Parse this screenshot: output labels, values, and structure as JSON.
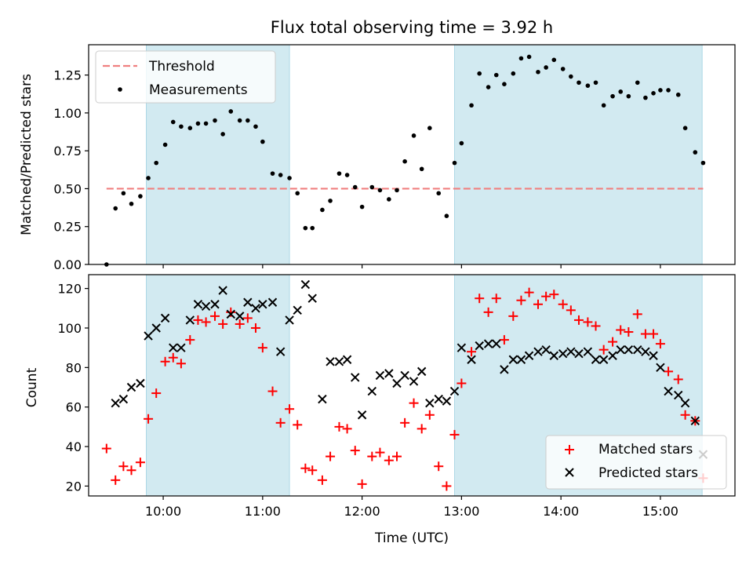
{
  "chart_data": [
    {
      "type": "scatter",
      "title": "Flux total observing time = 3.92 h",
      "ylabel": "Matched/Predicted stars",
      "xlabel": "",
      "x_unit": "hours UTC",
      "xlim": [
        9.25,
        15.75
      ],
      "ylim": [
        0.0,
        1.45
      ],
      "yticks": [
        0.0,
        0.25,
        0.5,
        0.75,
        1.0,
        1.25
      ],
      "ytick_labels": [
        "0.00",
        "0.25",
        "0.50",
        "0.75",
        "1.00",
        "1.25"
      ],
      "xticks": [
        10,
        11,
        12,
        13,
        14,
        15
      ],
      "xtick_labels": [
        "",
        "",
        "",
        "",
        "",
        ""
      ],
      "grid": false,
      "legend_position": "top-left",
      "shaded_spans": [
        [
          9.83,
          11.27
        ],
        [
          12.93,
          15.42
        ]
      ],
      "shade_color": "#add8e6",
      "threshold": {
        "name": "Threshold",
        "value": 0.5,
        "x_range": [
          9.43,
          15.43
        ],
        "color": "#f08080",
        "style": "dashed"
      },
      "series": [
        {
          "name": "Measurements",
          "marker": "dot",
          "color": "#000000",
          "x": [
            9.43,
            9.52,
            9.6,
            9.68,
            9.77,
            9.85,
            9.93,
            10.02,
            10.1,
            10.18,
            10.27,
            10.35,
            10.43,
            10.52,
            10.6,
            10.68,
            10.77,
            10.85,
            10.93,
            11.0,
            11.1,
            11.18,
            11.27,
            11.35,
            11.43,
            11.5,
            11.6,
            11.68,
            11.77,
            11.85,
            11.93,
            12.0,
            12.1,
            12.18,
            12.27,
            12.35,
            12.43,
            12.52,
            12.6,
            12.68,
            12.77,
            12.85,
            12.93,
            13.0,
            13.1,
            13.18,
            13.27,
            13.35,
            13.43,
            13.52,
            13.6,
            13.68,
            13.77,
            13.85,
            13.93,
            14.02,
            14.1,
            14.18,
            14.27,
            14.35,
            14.43,
            14.52,
            14.6,
            14.68,
            14.77,
            14.85,
            14.93,
            15.0,
            15.08,
            15.18,
            15.25,
            15.35,
            15.43
          ],
          "y": [
            0.0,
            0.37,
            0.47,
            0.4,
            0.45,
            0.57,
            0.67,
            0.79,
            0.94,
            0.91,
            0.9,
            0.93,
            0.93,
            0.95,
            0.86,
            1.01,
            0.95,
            0.95,
            0.91,
            0.81,
            0.6,
            0.59,
            0.57,
            0.47,
            0.24,
            0.24,
            0.36,
            0.42,
            0.6,
            0.59,
            0.51,
            0.38,
            0.51,
            0.49,
            0.43,
            0.49,
            0.68,
            0.85,
            0.63,
            0.9,
            0.47,
            0.32,
            0.67,
            0.8,
            1.05,
            1.26,
            1.17,
            1.25,
            1.19,
            1.26,
            1.36,
            1.37,
            1.27,
            1.3,
            1.35,
            1.29,
            1.24,
            1.2,
            1.18,
            1.2,
            1.05,
            1.11,
            1.14,
            1.11,
            1.2,
            1.1,
            1.13,
            1.15,
            1.15,
            1.12,
            0.9,
            0.74,
            0.67
          ]
        }
      ]
    },
    {
      "type": "scatter",
      "title": "",
      "ylabel": "Count",
      "xlabel": "Time (UTC)",
      "x_unit": "hours UTC",
      "xlim": [
        9.25,
        15.75
      ],
      "ylim": [
        15,
        127
      ],
      "yticks": [
        20,
        40,
        60,
        80,
        100,
        120
      ],
      "ytick_labels": [
        "20",
        "40",
        "60",
        "80",
        "100",
        "120"
      ],
      "xticks": [
        10,
        11,
        12,
        13,
        14,
        15
      ],
      "xtick_labels": [
        "10:00",
        "11:00",
        "12:00",
        "13:00",
        "14:00",
        "15:00"
      ],
      "grid": false,
      "legend_position": "bottom-right",
      "shaded_spans": [
        [
          9.83,
          11.27
        ],
        [
          12.93,
          15.42
        ]
      ],
      "shade_color": "#add8e6",
      "series": [
        {
          "name": "Matched stars",
          "marker": "plus",
          "color": "#ff0000",
          "x": [
            9.43,
            9.52,
            9.6,
            9.68,
            9.77,
            9.85,
            9.93,
            10.02,
            10.1,
            10.18,
            10.27,
            10.35,
            10.43,
            10.52,
            10.6,
            10.68,
            10.77,
            10.85,
            10.93,
            11.0,
            11.1,
            11.18,
            11.27,
            11.35,
            11.43,
            11.5,
            11.6,
            11.68,
            11.77,
            11.85,
            11.93,
            12.0,
            12.1,
            12.18,
            12.27,
            12.35,
            12.43,
            12.52,
            12.6,
            12.68,
            12.77,
            12.85,
            12.93,
            13.0,
            13.1,
            13.18,
            13.27,
            13.35,
            13.43,
            13.52,
            13.6,
            13.68,
            13.77,
            13.85,
            13.93,
            14.02,
            14.1,
            14.18,
            14.27,
            14.35,
            14.43,
            14.52,
            14.6,
            14.68,
            14.77,
            14.85,
            14.93,
            15.0,
            15.08,
            15.18,
            15.25,
            15.35,
            15.43
          ],
          "y": [
            39,
            23,
            30,
            28,
            32,
            54,
            67,
            83,
            85,
            82,
            94,
            104,
            103,
            106,
            102,
            108,
            102,
            105,
            100,
            90,
            68,
            52,
            59,
            51,
            29,
            28,
            23,
            35,
            50,
            49,
            38,
            21,
            35,
            37,
            33,
            35,
            52,
            62,
            49,
            56,
            30,
            20,
            46,
            72,
            88,
            115,
            108,
            115,
            94,
            106,
            114,
            118,
            112,
            116,
            117,
            112,
            109,
            104,
            103,
            101,
            89,
            93,
            99,
            98,
            107,
            97,
            97,
            92,
            78,
            74,
            56,
            53,
            24
          ]
        },
        {
          "name": "Predicted stars",
          "marker": "x",
          "color": "#000000",
          "x": [
            9.52,
            9.6,
            9.68,
            9.77,
            9.85,
            9.93,
            10.02,
            10.1,
            10.18,
            10.27,
            10.35,
            10.43,
            10.52,
            10.6,
            10.68,
            10.77,
            10.85,
            10.93,
            11.0,
            11.1,
            11.18,
            11.27,
            11.35,
            11.43,
            11.5,
            11.6,
            11.68,
            11.77,
            11.85,
            11.93,
            12.0,
            12.1,
            12.18,
            12.27,
            12.35,
            12.43,
            12.52,
            12.6,
            12.68,
            12.77,
            12.85,
            12.93,
            13.0,
            13.1,
            13.18,
            13.27,
            13.35,
            13.43,
            13.52,
            13.6,
            13.68,
            13.77,
            13.85,
            13.93,
            14.02,
            14.1,
            14.18,
            14.27,
            14.35,
            14.43,
            14.52,
            14.6,
            14.68,
            14.77,
            14.85,
            14.93,
            15.0,
            15.08,
            15.18,
            15.25,
            15.35,
            15.43
          ],
          "y": [
            62,
            64,
            70,
            72,
            96,
            100,
            105,
            90,
            90,
            104,
            112,
            111,
            112,
            119,
            107,
            106,
            113,
            110,
            112,
            113,
            88,
            104,
            109,
            122,
            115,
            64,
            83,
            83,
            84,
            75,
            56,
            68,
            76,
            77,
            72,
            76,
            73,
            78,
            62,
            64,
            63,
            68,
            90,
            84,
            91,
            92,
            92,
            79,
            84,
            84,
            86,
            88,
            89,
            86,
            87,
            88,
            87,
            88,
            84,
            84,
            86,
            89,
            89,
            89,
            88,
            86,
            80,
            68,
            66,
            62,
            53,
            36
          ]
        }
      ]
    }
  ]
}
